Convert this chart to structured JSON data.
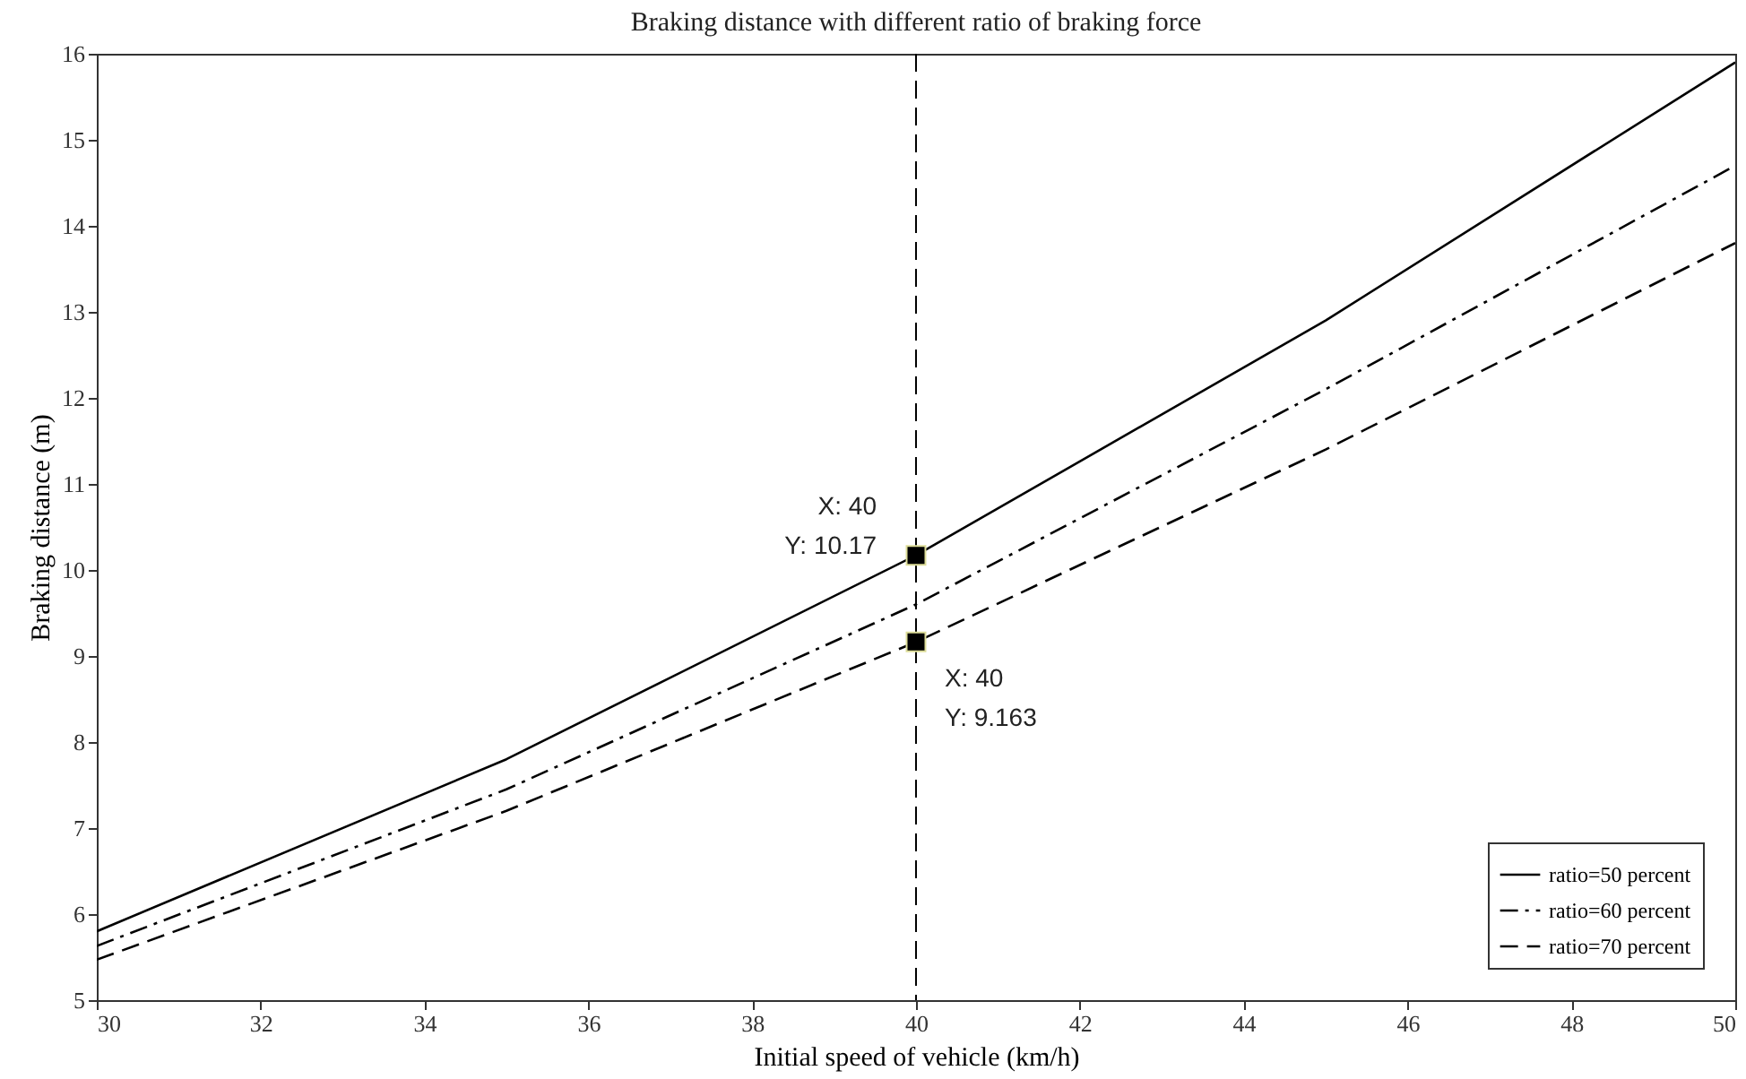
{
  "chart_data": {
    "type": "line",
    "title": "Braking distance with different ratio of braking force",
    "xlabel": "Initial speed of vehicle (km/h)",
    "ylabel": "Braking distance (m)",
    "x": [
      30,
      35,
      40,
      45,
      50
    ],
    "series": [
      {
        "name": "ratio=50 percent",
        "color": "#000000",
        "line_style": "solid",
        "values": [
          5.8,
          7.8,
          10.17,
          12.9,
          15.9
        ]
      },
      {
        "name": "ratio=60 percent",
        "color": "#000000",
        "line_style": "dashdot",
        "values": [
          5.63,
          7.45,
          9.6,
          12.1,
          14.7
        ]
      },
      {
        "name": "ratio=70 percent",
        "color": "#000000",
        "line_style": "dashed",
        "values": [
          5.47,
          7.2,
          9.163,
          11.4,
          13.8
        ]
      }
    ],
    "xlim": [
      30,
      50
    ],
    "xticks": [
      30,
      32,
      34,
      36,
      38,
      40,
      42,
      44,
      46,
      48,
      50
    ],
    "ylim": [
      5,
      16
    ],
    "yticks": [
      5,
      6,
      7,
      8,
      9,
      10,
      11,
      12,
      13,
      14,
      15,
      16
    ],
    "ref_lines": [
      {
        "axis": "x",
        "value": 40,
        "line_style": "dashed",
        "color": "#000000"
      }
    ],
    "annotations": [
      {
        "text": "X: 40\nY: 10.17",
        "x": 40,
        "y": 10.17
      },
      {
        "text": "X: 40\nY: 9.163",
        "x": 40,
        "y": 9.163
      }
    ],
    "grid": false,
    "legend": "bottom right"
  }
}
